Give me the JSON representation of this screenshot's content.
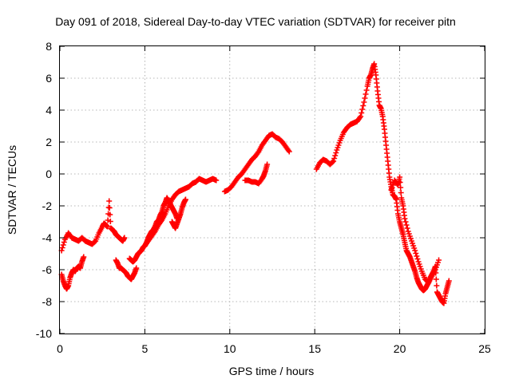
{
  "chart_data": {
    "type": "scatter",
    "title": "Day 091 of 2018, Sidereal Day-to-day VTEC variation (SDTVAR) for receiver pitn",
    "xlabel": "GPS time / hours",
    "ylabel": "SDTVAR / TECUs",
    "xlim": [
      0,
      25
    ],
    "ylim": [
      -10,
      8
    ],
    "xticks": [
      0,
      5,
      10,
      15,
      20,
      25
    ],
    "yticks": [
      -10,
      -8,
      -6,
      -4,
      -2,
      0,
      2,
      4,
      6,
      8
    ],
    "grid": true,
    "marker": "+",
    "color": "#ff0000",
    "series": [
      {
        "name": "seg-a",
        "x": [
          0.1,
          0.2,
          0.3,
          0.4,
          0.5,
          0.6,
          0.7,
          0.8,
          0.9,
          1.0,
          1.1,
          1.2,
          1.3,
          1.4
        ],
        "y": [
          -6.3,
          -6.7,
          -7.0,
          -7.2,
          -7.0,
          -6.5,
          -6.2,
          -6.0,
          -6.1,
          -5.9,
          -5.8,
          -5.9,
          -5.5,
          -5.2
        ]
      },
      {
        "name": "seg-b",
        "x": [
          0.1,
          0.3,
          0.5,
          0.7,
          0.9,
          1.1,
          1.3,
          1.5,
          1.7,
          1.9,
          2.1,
          2.3,
          2.5,
          2.6,
          2.7,
          2.8,
          2.9,
          3.0,
          3.1,
          3.2,
          3.3,
          3.4,
          3.5,
          3.6,
          3.7,
          3.8
        ],
        "y": [
          -4.8,
          -4.1,
          -3.7,
          -4.0,
          -4.1,
          -4.2,
          -4.0,
          -4.2,
          -4.3,
          -4.4,
          -4.2,
          -3.7,
          -3.3,
          -3.1,
          -3.2,
          -3.3,
          -1.7,
          -3.4,
          -3.5,
          -3.6,
          -3.8,
          -3.9,
          -4.0,
          -4.1,
          -4.2,
          -4.0
        ]
      },
      {
        "name": "seg-c",
        "x": [
          3.3,
          3.4,
          3.5,
          3.6,
          3.7,
          3.8,
          3.9,
          4.0,
          4.1,
          4.2,
          4.3,
          4.4,
          4.5
        ],
        "y": [
          -5.4,
          -5.6,
          -5.9,
          -5.9,
          -6.0,
          -6.1,
          -6.2,
          -6.4,
          -6.5,
          -6.6,
          -6.4,
          -6.2,
          -5.9
        ]
      },
      {
        "name": "seg-d",
        "x": [
          4.1,
          4.2,
          4.3,
          4.4,
          4.5,
          4.6,
          4.7,
          4.8,
          4.9,
          5.0,
          5.1,
          5.2,
          5.3,
          5.4,
          5.5,
          5.6,
          5.7,
          5.8,
          5.9,
          6.0,
          6.1,
          6.2,
          6.3,
          6.4,
          6.5,
          6.6,
          6.7,
          6.8,
          6.9
        ],
        "y": [
          -5.3,
          -5.4,
          -5.5,
          -5.4,
          -5.2,
          -5.0,
          -4.9,
          -4.8,
          -4.6,
          -4.5,
          -4.3,
          -4.0,
          -3.8,
          -3.6,
          -3.5,
          -3.3,
          -3.0,
          -2.9,
          -2.6,
          -2.4,
          -2.0,
          -1.8,
          -1.5,
          -1.7,
          -1.9,
          -2.1,
          -2.3,
          -2.5,
          -2.8
        ]
      },
      {
        "name": "seg-e",
        "x": [
          5.0,
          5.2,
          5.4,
          5.6,
          5.8,
          6.0,
          6.2,
          6.4,
          6.6,
          6.8,
          7.0,
          7.2,
          7.4,
          7.6,
          7.8,
          8.0,
          8.2,
          8.4,
          8.6,
          8.8,
          9.0,
          9.2
        ],
        "y": [
          -4.5,
          -4.2,
          -3.9,
          -3.6,
          -3.2,
          -2.9,
          -2.5,
          -2.0,
          -1.6,
          -1.3,
          -1.1,
          -1.0,
          -0.9,
          -0.8,
          -0.6,
          -0.5,
          -0.3,
          -0.4,
          -0.5,
          -0.4,
          -0.3,
          -0.4
        ]
      },
      {
        "name": "seg-f",
        "x": [
          6.6,
          6.7,
          6.8,
          6.9,
          7.0,
          7.1,
          7.2,
          7.3,
          7.4
        ],
        "y": [
          -3.0,
          -3.2,
          -3.4,
          -3.1,
          -2.8,
          -2.5,
          -2.1,
          -1.8,
          -1.6
        ]
      },
      {
        "name": "seg-g",
        "x": [
          9.7,
          9.9,
          10.1,
          10.3,
          10.5,
          10.7,
          10.9,
          11.1,
          11.3,
          11.5,
          11.7,
          11.9,
          12.1,
          12.3,
          12.5,
          12.7,
          12.9,
          13.1,
          13.3,
          13.5
        ],
        "y": [
          -1.1,
          -1.0,
          -0.8,
          -0.5,
          -0.2,
          0.0,
          0.3,
          0.6,
          0.9,
          1.1,
          1.4,
          1.8,
          2.1,
          2.4,
          2.5,
          2.3,
          2.2,
          2.0,
          1.7,
          1.4
        ]
      },
      {
        "name": "seg-h",
        "x": [
          10.9,
          11.1,
          11.3,
          11.5,
          11.7,
          11.9,
          12.0,
          12.1,
          12.2
        ],
        "y": [
          -0.4,
          -0.4,
          -0.5,
          -0.5,
          -0.6,
          -0.3,
          -0.1,
          0.2,
          0.6
        ]
      },
      {
        "name": "seg-i",
        "x": [
          15.1,
          15.3,
          15.5,
          15.7,
          15.9,
          16.1,
          16.3,
          16.5,
          16.7,
          16.9,
          17.1,
          17.3,
          17.5,
          17.7,
          17.9,
          18.1,
          18.2,
          18.3,
          18.4,
          18.5,
          18.6,
          18.7,
          18.8,
          18.9,
          19.0,
          19.1,
          19.2,
          19.3,
          19.4,
          19.5,
          19.6,
          19.7,
          19.8,
          19.9,
          20.0,
          20.1,
          20.2,
          20.3,
          20.4,
          20.5,
          20.6,
          20.7,
          20.8,
          20.9,
          21.0,
          21.1,
          21.2,
          21.3,
          21.4,
          21.5,
          21.6,
          21.7,
          21.8,
          21.9,
          22.0,
          22.1,
          22.2,
          22.3,
          22.4,
          22.5,
          22.6,
          22.7,
          22.8,
          22.9
        ],
        "y": [
          0.3,
          0.7,
          0.9,
          0.8,
          0.6,
          0.8,
          1.5,
          2.1,
          2.6,
          2.9,
          3.1,
          3.2,
          3.3,
          3.6,
          4.5,
          5.5,
          6.0,
          6.2,
          6.6,
          6.9,
          6.2,
          5.2,
          4.3,
          4.1,
          3.6,
          2.8,
          1.8,
          0.8,
          -0.2,
          -0.8,
          -1.3,
          -1.4,
          -1.6,
          -2.5,
          -3.0,
          -3.4,
          -3.8,
          -4.3,
          -4.8,
          -5.0,
          -5.2,
          -5.5,
          -5.8,
          -6.1,
          -6.5,
          -6.8,
          -7.0,
          -7.2,
          -7.3,
          -7.2,
          -7.0,
          -6.8,
          -6.5,
          -6.3,
          -6.1,
          -5.8,
          -7.4,
          -7.6,
          -7.8,
          -8.0,
          -8.1,
          -7.5,
          -7.1,
          -6.7
        ]
      },
      {
        "name": "seg-j",
        "x": [
          19.5,
          19.7,
          19.9,
          20.0,
          20.1,
          20.2,
          20.3,
          20.5,
          20.7,
          20.9,
          21.1,
          21.3,
          21.5,
          21.7,
          21.9,
          22.1,
          22.3
        ],
        "y": [
          -1.0,
          -0.4,
          -0.7,
          -0.2,
          -1.5,
          -2.0,
          -2.8,
          -3.6,
          -4.2,
          -4.8,
          -5.5,
          -6.1,
          -6.6,
          -6.8,
          -6.4,
          -6.0,
          -5.4
        ]
      }
    ]
  }
}
